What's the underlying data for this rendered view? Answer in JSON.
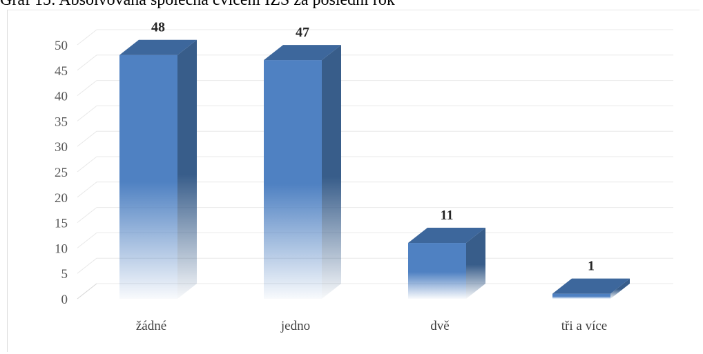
{
  "title": "Graf 15: Absolvovaná společná cvičení IZS za poslední rok",
  "chart_data": {
    "type": "bar",
    "style": "3d-column",
    "categories": [
      "žádné",
      "jedno",
      "dvě",
      "tři a více"
    ],
    "values": [
      48,
      47,
      11,
      1
    ],
    "labels": [
      "48",
      "47",
      "11",
      "1"
    ],
    "ylim": [
      0,
      50
    ],
    "yticks": [
      0,
      5,
      10,
      15,
      20,
      25,
      30,
      35,
      40,
      45,
      50
    ],
    "grid": true,
    "legend": "none",
    "colors": {
      "front": "#4f81c2",
      "side": "#385d8a",
      "top": "#3d679c",
      "grid": "#e8e8e8"
    }
  }
}
